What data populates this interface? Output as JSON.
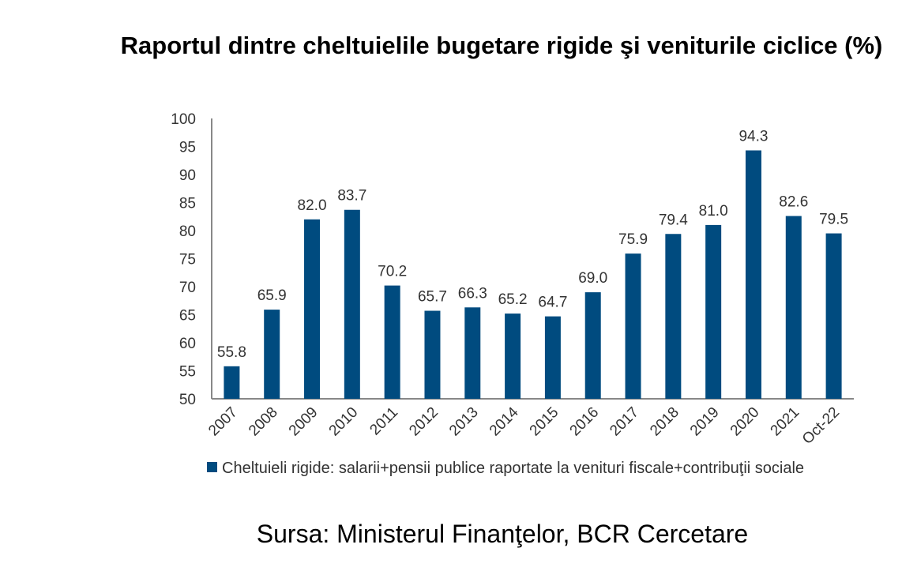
{
  "chart_data": {
    "type": "bar",
    "title": "Raportul dintre cheltuielile bugetare rigide şi veniturile ciclice (%)",
    "categories": [
      "2007",
      "2008",
      "2009",
      "2010",
      "2011",
      "2012",
      "2013",
      "2014",
      "2015",
      "2016",
      "2017",
      "2018",
      "2019",
      "2020",
      "2021",
      "Oct-22"
    ],
    "series": [
      {
        "name": "Cheltuieli rigide: salarii+pensii publice raportate la venituri fiscale+contribuţii sociale",
        "values": [
          55.8,
          65.9,
          82.0,
          83.7,
          70.2,
          65.7,
          66.3,
          65.2,
          64.7,
          69.0,
          75.9,
          79.4,
          81.0,
          94.3,
          82.6,
          79.5
        ],
        "color": "#004B7F"
      }
    ],
    "ylim": [
      50,
      100
    ],
    "yticks": [
      50,
      55,
      60,
      65,
      70,
      75,
      80,
      85,
      90,
      95,
      100
    ],
    "data_labels": true,
    "grid": false,
    "legend": "bottom-left"
  },
  "source": "Sursa: Ministerul Finanţelor, BCR Cercetare"
}
